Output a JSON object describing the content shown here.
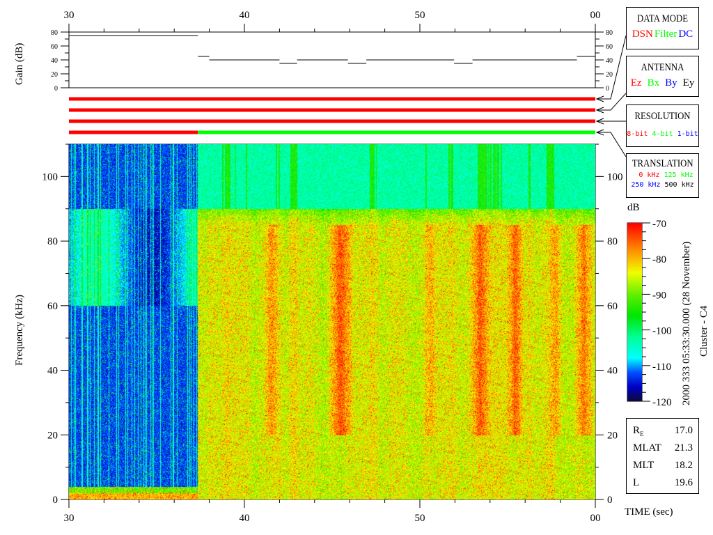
{
  "colors": {
    "red": "#ff0000",
    "green": "#00ff00",
    "blue": "#0000ff",
    "black": "#000000"
  },
  "gain_panel": {
    "ylabel": "Gain (dB)",
    "yticks": [
      "0",
      "20",
      "40",
      "60",
      "80"
    ]
  },
  "time_axis": {
    "ticks": [
      "30",
      "40",
      "50",
      "00"
    ],
    "label": "TIME (sec)"
  },
  "freq_axis": {
    "label": "Frequency (kHz)",
    "ticks": [
      "0",
      "20",
      "40",
      "60",
      "80",
      "100"
    ]
  },
  "legend_boxes": {
    "data_mode": {
      "title": "DATA MODE",
      "items": [
        {
          "text": "DSN",
          "color": "#ff0000"
        },
        {
          "text": "Filter",
          "color": "#00ff00"
        },
        {
          "text": "DC",
          "color": "#0000ff"
        }
      ]
    },
    "antenna": {
      "title": "ANTENNA",
      "items": [
        {
          "text": "Ez",
          "color": "#ff0000"
        },
        {
          "text": "Bx",
          "color": "#00ff00"
        },
        {
          "text": "By",
          "color": "#0000ff"
        },
        {
          "text": "Ey",
          "color": "#000000"
        }
      ]
    },
    "resolution": {
      "title": "RESOLUTION",
      "items": [
        {
          "text": "8-bit",
          "color": "#ff0000"
        },
        {
          "text": "4-bit",
          "color": "#00ff00"
        },
        {
          "text": "1-bit",
          "color": "#0000ff"
        }
      ]
    },
    "translation": {
      "title": "TRANSLATION",
      "items": [
        {
          "text": "0 kHz",
          "color": "#ff0000"
        },
        {
          "text": "125 kHz",
          "color": "#00ff00"
        },
        {
          "text": "250 kHz",
          "color": "#0000ff"
        },
        {
          "text": "500 kHz",
          "color": "#000000"
        }
      ]
    }
  },
  "colorbar": {
    "label": "dB",
    "ticks": [
      "-70",
      "-80",
      "-90",
      "-100",
      "-110",
      "-120"
    ]
  },
  "caption": {
    "line1": "2000 333 05:33:30.000 (28 November)",
    "line2": "Cluster - C4"
  },
  "orbit_info": [
    {
      "label": "R",
      "sub": "E",
      "value": "17.0"
    },
    {
      "label": "MLAT",
      "sub": "",
      "value": "21.3"
    },
    {
      "label": "MLT",
      "sub": "",
      "value": "18.2"
    },
    {
      "label": "L",
      "sub": "",
      "value": "19.6"
    }
  ],
  "chart_data": [
    {
      "type": "line",
      "ylabel": "Gain (dB)",
      "ylim": [
        0,
        80
      ],
      "xlim": [
        30,
        60
      ],
      "x_tick_labels": [
        "30",
        "40",
        "50",
        "00"
      ],
      "segments": [
        {
          "x0": 30.0,
          "x1": 37.35,
          "y": 75
        },
        {
          "x0": 37.35,
          "x1": 38.0,
          "y": 45
        },
        {
          "x0": 38.0,
          "x1": 42.0,
          "y": 40
        },
        {
          "x0": 42.0,
          "x1": 43.0,
          "y": 35
        },
        {
          "x0": 43.0,
          "x1": 45.9,
          "y": 40
        },
        {
          "x0": 45.9,
          "x1": 46.95,
          "y": 35
        },
        {
          "x0": 46.95,
          "x1": 51.95,
          "y": 40
        },
        {
          "x0": 51.95,
          "x1": 53.0,
          "y": 35
        },
        {
          "x0": 53.0,
          "x1": 58.95,
          "y": 40
        },
        {
          "x0": 58.95,
          "x1": 60.0,
          "y": 45
        }
      ]
    },
    {
      "type": "bar",
      "description_rows": [
        "data_mode",
        "antenna",
        "resolution",
        "translation"
      ],
      "status_rows": [
        {
          "row": "data_mode",
          "spans": [
            {
              "x0": 30,
              "x1": 60,
              "color": "#ff0000"
            }
          ]
        },
        {
          "row": "antenna",
          "spans": [
            {
              "x0": 30,
              "x1": 60,
              "color": "#ff0000"
            }
          ]
        },
        {
          "row": "resolution",
          "spans": [
            {
              "x0": 30,
              "x1": 60,
              "color": "#ff0000"
            }
          ]
        },
        {
          "row": "translation",
          "spans": [
            {
              "x0": 30,
              "x1": 37.35,
              "color": "#ff0000"
            },
            {
              "x0": 37.35,
              "x1": 60,
              "color": "#00ff00"
            }
          ]
        }
      ]
    },
    {
      "type": "heatmap",
      "xlabel": "TIME (sec)",
      "ylabel": "Frequency (kHz)",
      "xlim": [
        30,
        60
      ],
      "ylim": [
        0,
        110
      ],
      "colorbar_label": "dB",
      "zlim": [
        -120,
        -70
      ],
      "mode_change_time": 37.35
    }
  ]
}
